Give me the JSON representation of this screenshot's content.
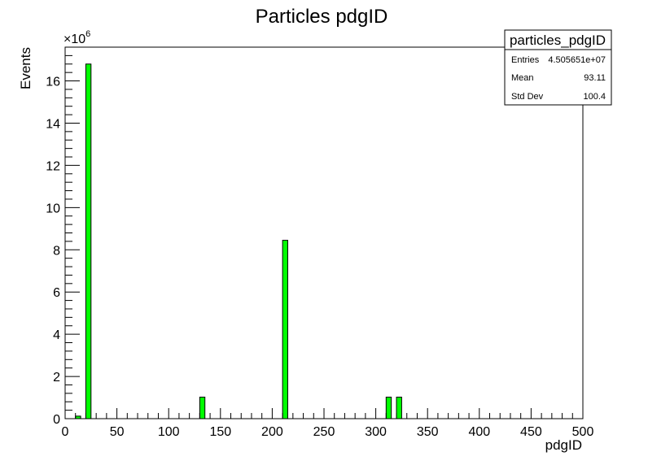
{
  "chart_data": {
    "type": "bar",
    "title": "Particles pdgID",
    "xlabel": "pdgID",
    "ylabel": "Events",
    "y_multiplier": "×10",
    "y_exponent": "6",
    "xlim": [
      0,
      500
    ],
    "ylim": [
      0,
      17.6
    ],
    "bin_width": 5,
    "grid": false,
    "bar_color": "#00ff00",
    "x_ticks": [
      0,
      50,
      100,
      150,
      200,
      250,
      300,
      350,
      400,
      450,
      500
    ],
    "y_ticks": [
      0,
      2,
      4,
      6,
      8,
      10,
      12,
      14,
      16
    ],
    "bars": [
      {
        "x0": 10,
        "x1": 15,
        "value": 0.12
      },
      {
        "x0": 20,
        "x1": 25,
        "value": 16.8
      },
      {
        "x0": 130,
        "x1": 135,
        "value": 1.02
      },
      {
        "x0": 210,
        "x1": 215,
        "value": 8.45
      },
      {
        "x0": 310,
        "x1": 315,
        "value": 1.02
      },
      {
        "x0": 320,
        "x1": 325,
        "value": 1.02
      }
    ]
  },
  "stats_box": {
    "title": "particles_pdgID",
    "rows": [
      {
        "label": "Entries",
        "value": "4.505651e+07"
      },
      {
        "label": "Mean",
        "value": "93.11"
      },
      {
        "label": "Std Dev",
        "value": "100.4"
      }
    ]
  }
}
